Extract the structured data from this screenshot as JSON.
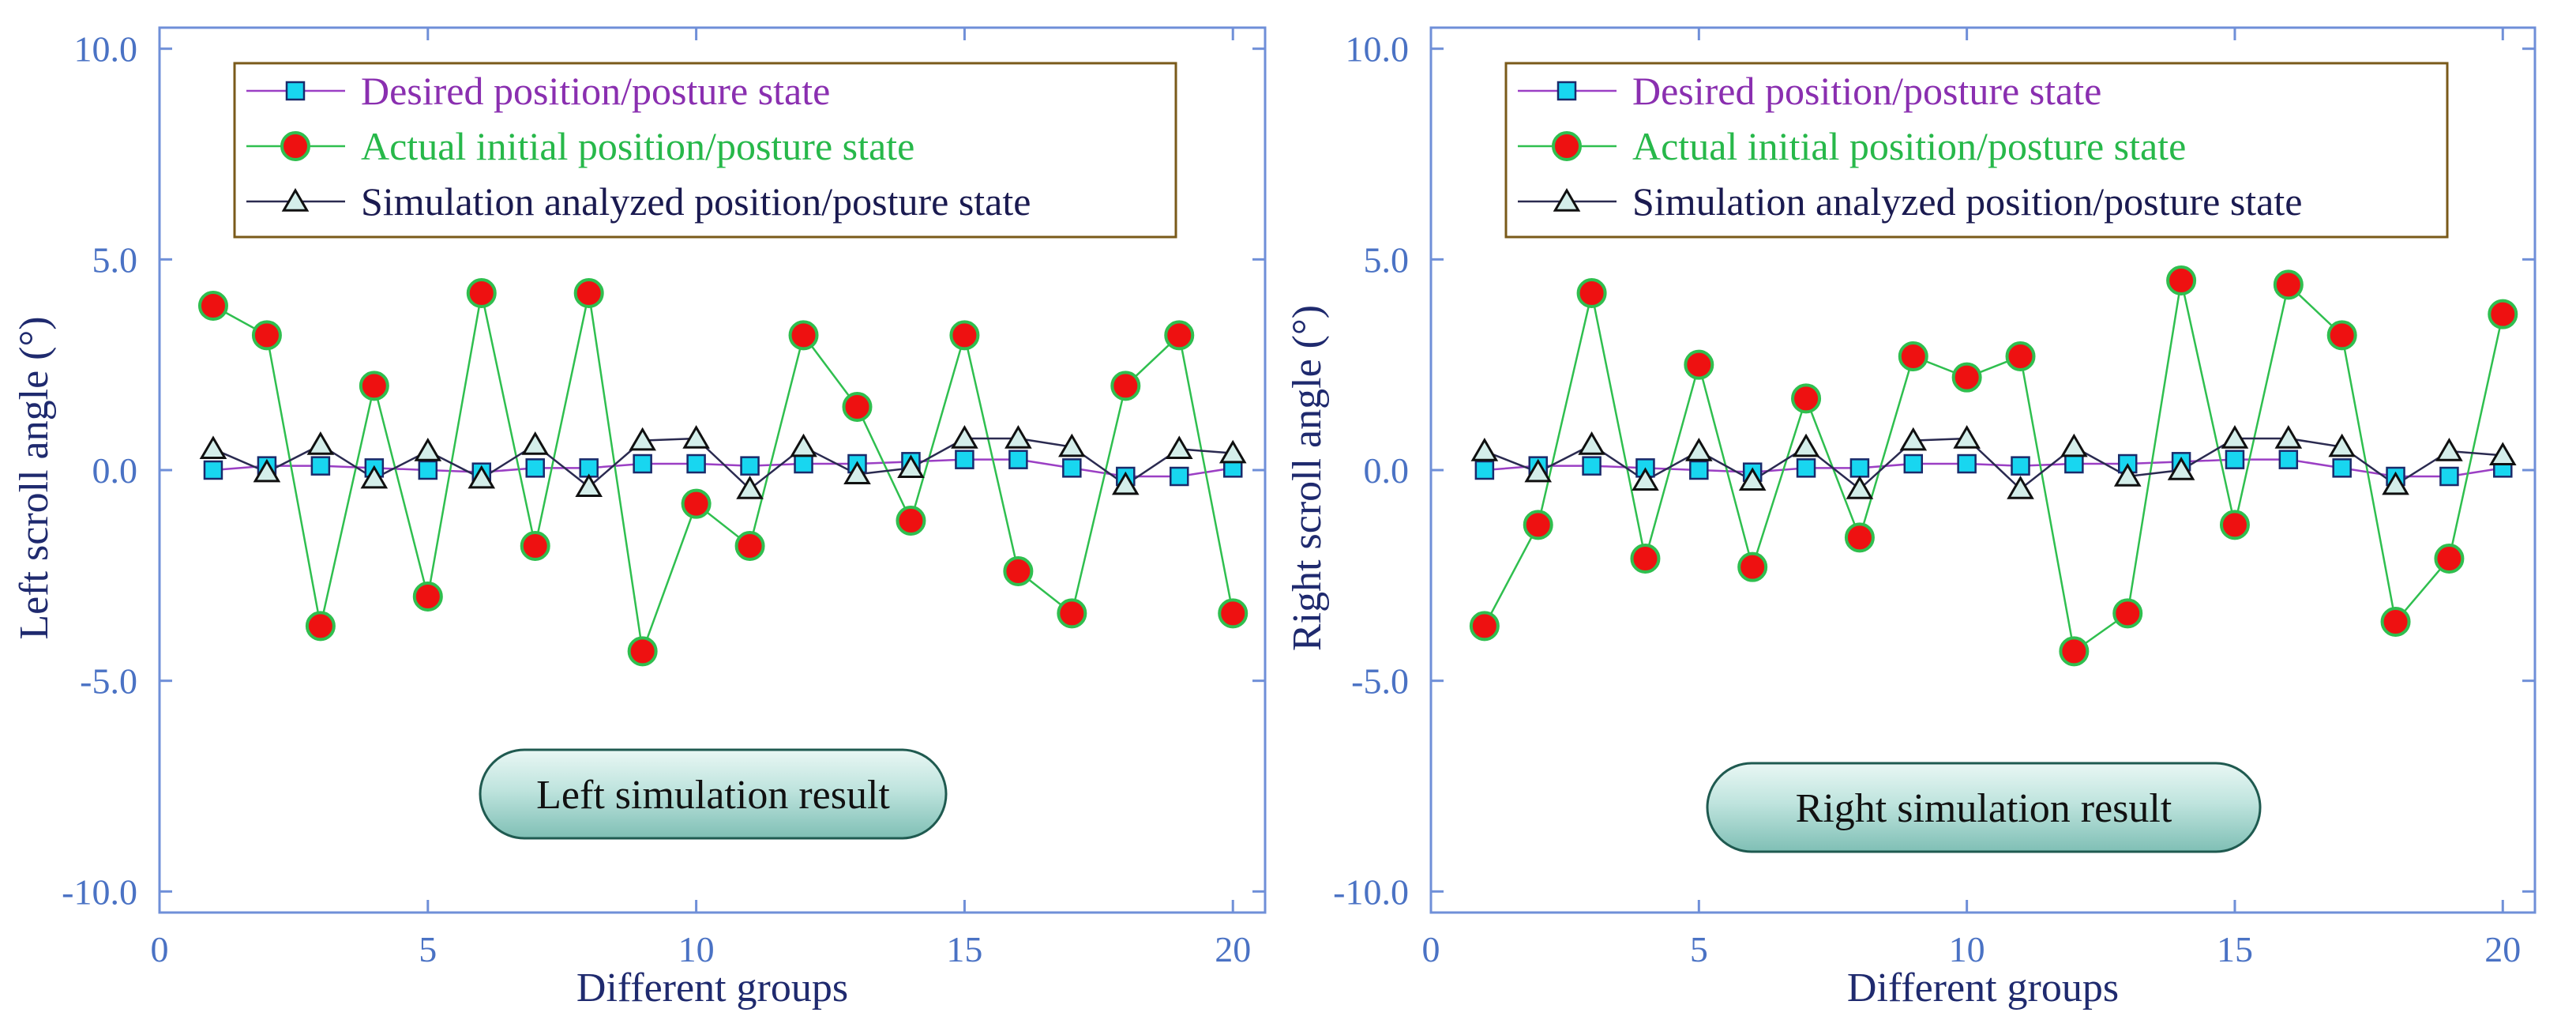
{
  "colors": {
    "axis": "#6f8fd8",
    "tick_label": "#4a72c4",
    "axis_title": "#1f2a6e",
    "desired_line": "#9b3fc4",
    "desired_marker": "#18d6f0",
    "actual_line": "#2fbf4f",
    "actual_marker": "#ee1111",
    "sim_line": "#2a2a50",
    "sim_marker": "#d4eeea",
    "legend_border": "#7a5a1a",
    "badge_fill": "#a9d9d2",
    "badge_border": "#1f5a50"
  },
  "legend_entries": [
    {
      "label": "Desired position/posture state",
      "color": "#8a2fb0"
    },
    {
      "label": "Actual initial position/posture state",
      "color": "#27b84a"
    },
    {
      "label": "Simulation analyzed position/posture state",
      "color": "#1a1a50"
    }
  ],
  "chart_data": [
    {
      "type": "line",
      "xlabel": "Different groups",
      "ylabel": "Left scroll angle (°)",
      "xlim": [
        0,
        20.6
      ],
      "ylim": [
        -10.5,
        10.5
      ],
      "x_ticks": [
        "0",
        "5",
        "10",
        "15",
        "20"
      ],
      "y_ticks": [
        "10.0",
        "5.0",
        "0.0",
        "-5.0",
        "-10.0"
      ],
      "legend_position": "top-left",
      "annotation": "Left simulation result",
      "x": [
        1,
        2,
        3,
        4,
        5,
        6,
        7,
        8,
        9,
        10,
        11,
        12,
        13,
        14,
        15,
        16,
        17,
        18,
        19,
        20
      ],
      "series": [
        {
          "name": "Desired position/posture state",
          "marker": "square",
          "values": [
            0.0,
            0.1,
            0.1,
            0.05,
            0.0,
            -0.05,
            0.05,
            0.05,
            0.15,
            0.15,
            0.1,
            0.15,
            0.15,
            0.2,
            0.25,
            0.25,
            0.05,
            -0.15,
            -0.15,
            0.05
          ]
        },
        {
          "name": "Actual initial position/posture state",
          "marker": "circle",
          "values": [
            3.9,
            3.2,
            -3.7,
            2.0,
            -3.0,
            4.2,
            -1.8,
            4.2,
            -4.3,
            -0.8,
            -1.8,
            3.2,
            1.5,
            -1.2,
            3.2,
            -2.4,
            -3.4,
            2.0,
            3.2,
            -3.4
          ]
        },
        {
          "name": "Simulation analyzed position/posture state",
          "marker": "triangle",
          "values": [
            0.5,
            -0.05,
            0.6,
            -0.2,
            0.45,
            -0.2,
            0.6,
            -0.4,
            0.7,
            0.75,
            -0.45,
            0.55,
            -0.1,
            0.05,
            0.75,
            0.75,
            0.55,
            -0.35,
            0.5,
            0.4
          ]
        }
      ]
    },
    {
      "type": "line",
      "xlabel": "Different groups",
      "ylabel": "Right scroll angle (°)",
      "xlim": [
        0,
        20.6
      ],
      "ylim": [
        -10.5,
        10.5
      ],
      "x_ticks": [
        "0",
        "5",
        "10",
        "15",
        "20"
      ],
      "y_ticks": [
        "10.0",
        "5.0",
        "0.0",
        "-5.0",
        "-10.0"
      ],
      "legend_position": "top-left",
      "annotation": "Right simulation result",
      "x": [
        1,
        2,
        3,
        4,
        5,
        6,
        7,
        8,
        9,
        10,
        11,
        12,
        13,
        14,
        15,
        16,
        17,
        18,
        19,
        20
      ],
      "series": [
        {
          "name": "Desired position/posture state",
          "marker": "square",
          "values": [
            0.0,
            0.1,
            0.1,
            0.05,
            0.0,
            -0.05,
            0.05,
            0.05,
            0.15,
            0.15,
            0.1,
            0.15,
            0.15,
            0.2,
            0.25,
            0.25,
            0.05,
            -0.15,
            -0.15,
            0.05
          ]
        },
        {
          "name": "Actual initial position/posture state",
          "marker": "circle",
          "values": [
            -3.7,
            -1.3,
            4.2,
            -2.1,
            2.5,
            -2.3,
            1.7,
            -1.6,
            2.7,
            2.2,
            2.7,
            -4.3,
            -3.4,
            4.5,
            -1.3,
            4.4,
            3.2,
            -3.6,
            -2.1,
            3.7
          ]
        },
        {
          "name": "Simulation analyzed position/posture state",
          "marker": "triangle",
          "values": [
            0.45,
            -0.05,
            0.6,
            -0.25,
            0.45,
            -0.25,
            0.55,
            -0.45,
            0.7,
            0.75,
            -0.45,
            0.55,
            -0.15,
            0.0,
            0.75,
            0.75,
            0.55,
            -0.35,
            0.45,
            0.35
          ]
        }
      ]
    }
  ]
}
